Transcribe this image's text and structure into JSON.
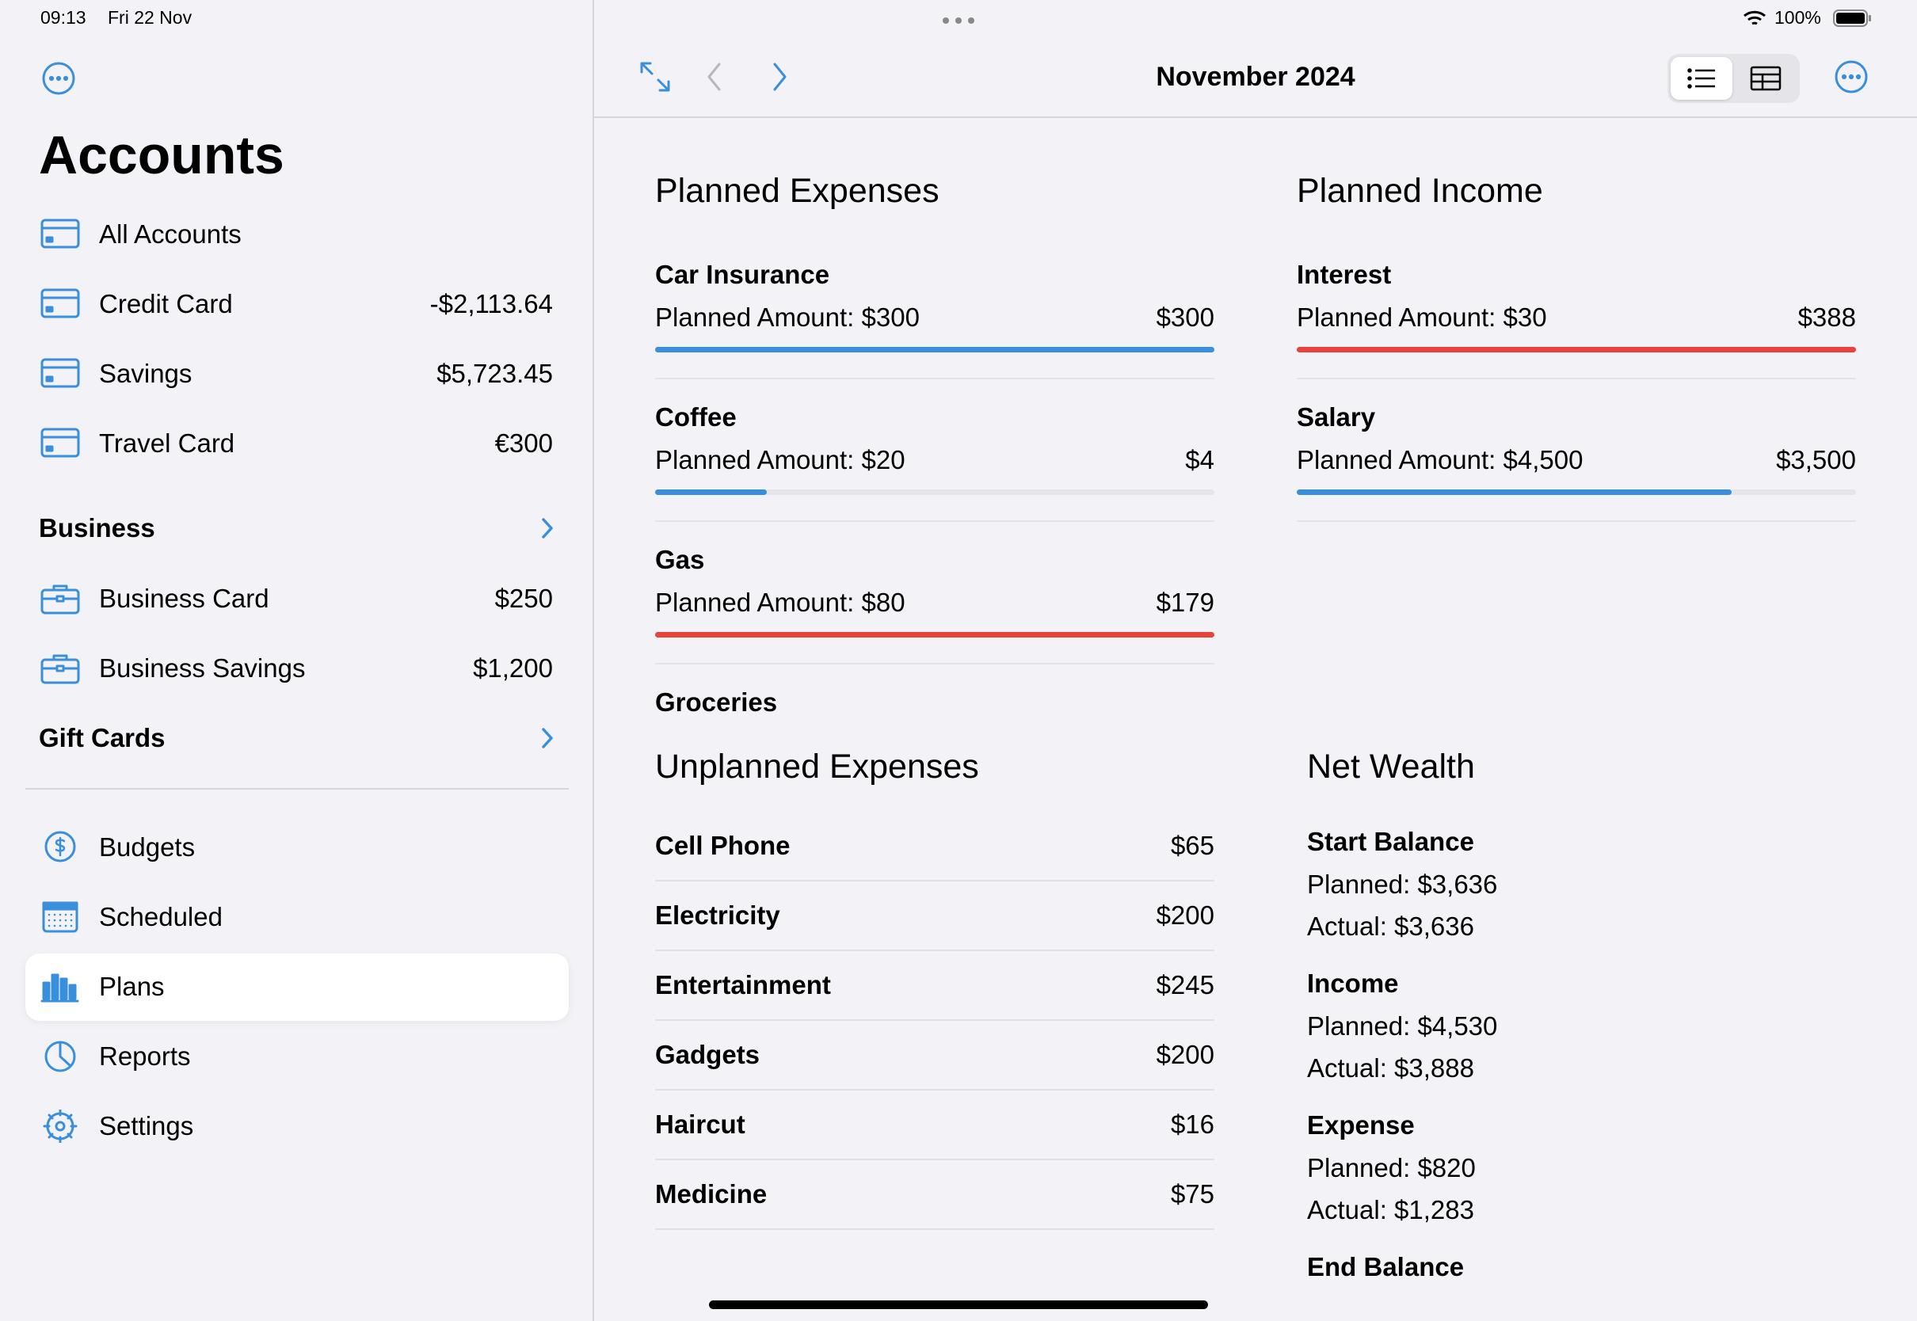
{
  "status": {
    "time": "09:13",
    "date": "Fri 22 Nov",
    "battery": "100%"
  },
  "sidebar": {
    "title": "Accounts",
    "accounts": [
      {
        "name": "All Accounts"
      },
      {
        "name": "Credit Card",
        "amount": "-$2,113.64"
      },
      {
        "name": "Savings",
        "amount": "$5,723.45"
      },
      {
        "name": "Travel Card",
        "amount": "€300"
      }
    ],
    "sections": [
      {
        "title": "Business",
        "accounts": [
          {
            "name": "Business Card",
            "amount": "$250"
          },
          {
            "name": "Business Savings",
            "amount": "$1,200"
          }
        ]
      },
      {
        "title": "Gift Cards"
      }
    ],
    "nav": [
      {
        "label": "Budgets"
      },
      {
        "label": "Scheduled"
      },
      {
        "label": "Plans",
        "selected": true
      },
      {
        "label": "Reports"
      },
      {
        "label": "Settings"
      }
    ]
  },
  "header": {
    "title": "November 2024"
  },
  "planned_expenses": {
    "title": "Planned Expenses",
    "items": [
      {
        "name": "Car Insurance",
        "planned": 300,
        "planned_label": "Planned Amount: $300",
        "actual": 300,
        "actual_label": "$300"
      },
      {
        "name": "Coffee",
        "planned": 20,
        "planned_label": "Planned Amount: $20",
        "actual": 4,
        "actual_label": "$4"
      },
      {
        "name": "Gas",
        "planned": 80,
        "planned_label": "Planned Amount: $80",
        "actual": 179,
        "actual_label": "$179"
      },
      {
        "name": "Groceries"
      }
    ]
  },
  "planned_income": {
    "title": "Planned Income",
    "items": [
      {
        "name": "Interest",
        "planned": 30,
        "planned_label": "Planned Amount: $30",
        "actual": 388,
        "actual_label": "$388"
      },
      {
        "name": "Salary",
        "planned": 4500,
        "planned_label": "Planned Amount: $4,500",
        "actual": 3500,
        "actual_label": "$3,500"
      }
    ]
  },
  "unplanned_expenses": {
    "title": "Unplanned Expenses",
    "items": [
      {
        "name": "Cell Phone",
        "amount": "$65"
      },
      {
        "name": "Electricity",
        "amount": "$200"
      },
      {
        "name": "Entertainment",
        "amount": "$245"
      },
      {
        "name": "Gadgets",
        "amount": "$200"
      },
      {
        "name": "Haircut",
        "amount": "$16"
      },
      {
        "name": "Medicine",
        "amount": "$75"
      }
    ]
  },
  "net_wealth": {
    "title": "Net Wealth",
    "groups": [
      {
        "title": "Start Balance",
        "planned": "Planned: $3,636",
        "actual": "Actual: $3,636"
      },
      {
        "title": "Income",
        "planned": "Planned: $4,530",
        "actual": "Actual: $3,888"
      },
      {
        "title": "Expense",
        "planned": "Planned: $820",
        "actual": "Actual: $1,283"
      },
      {
        "title": "End Balance"
      }
    ]
  }
}
